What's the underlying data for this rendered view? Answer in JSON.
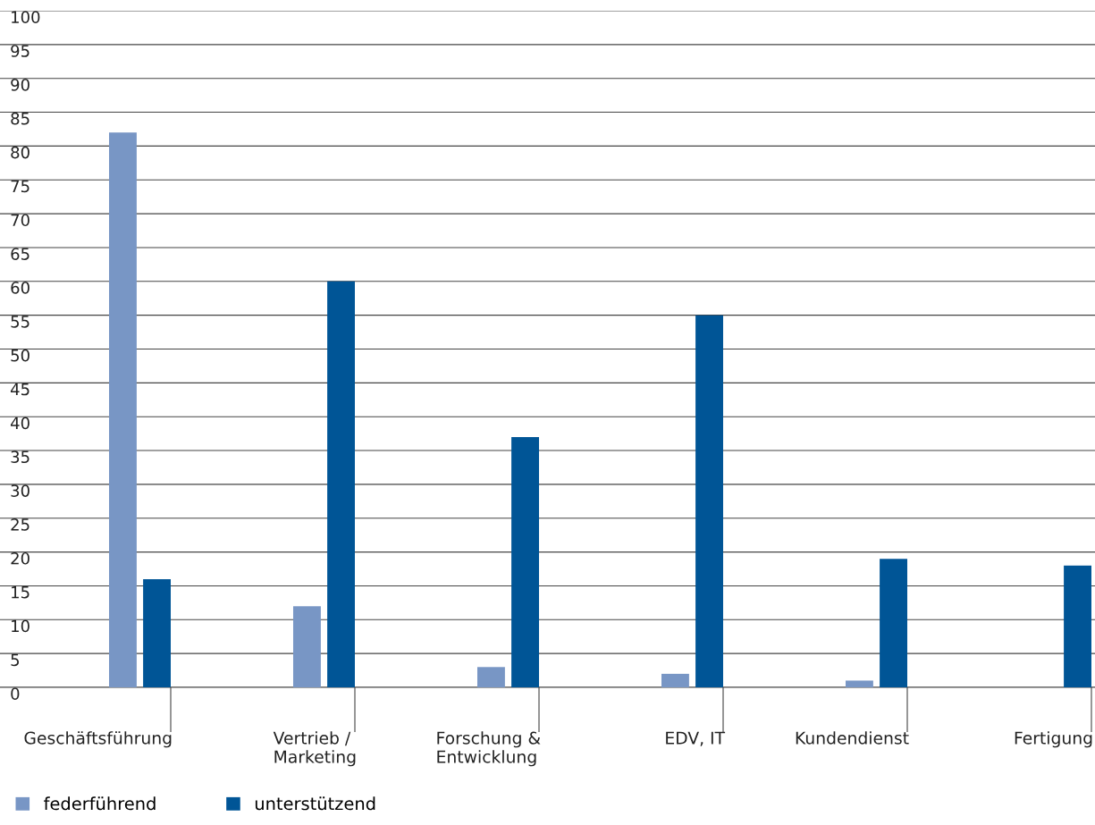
{
  "chart_data": {
    "type": "bar",
    "categories": [
      "Geschäftsführung",
      "Vertrieb / Marketing",
      "Forschung & Entwicklung",
      "EDV, IT",
      "Kundendienst",
      "Fertigung"
    ],
    "series": [
      {
        "name": "federführend",
        "color": "#7896c5",
        "values": [
          82,
          12,
          3,
          2,
          1,
          0
        ]
      },
      {
        "name": "unterstützend",
        "color": "#005596",
        "values": [
          16,
          60,
          37,
          55,
          19,
          18
        ]
      }
    ],
    "ylim": [
      0,
      100
    ],
    "yticks": [
      0,
      5,
      10,
      15,
      20,
      25,
      30,
      35,
      40,
      45,
      50,
      55,
      60,
      65,
      70,
      75,
      80,
      85,
      90,
      95,
      100
    ],
    "grid": "y",
    "legend": "bottom left"
  }
}
